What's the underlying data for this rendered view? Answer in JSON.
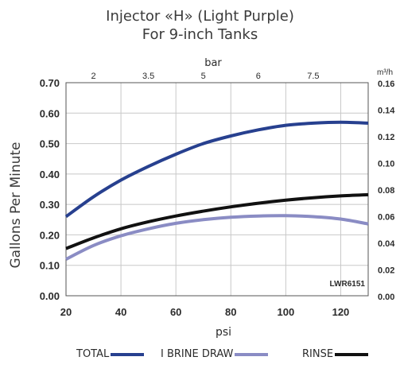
{
  "title_line1": "Injector «H» (Light Purple)",
  "title_line2": "For 9-inch Tanks",
  "left_axis_label": "Gallons Per Minute",
  "watermark": "LWR6151",
  "chart_data": {
    "type": "line",
    "xlabel": "psi",
    "ylabel": "Gallons Per Minute",
    "xlim": [
      20,
      130
    ],
    "ylim": [
      0,
      0.7
    ],
    "x_ticks": [
      20,
      40,
      60,
      80,
      100,
      120
    ],
    "x_tick_labels": [
      "20",
      "40",
      "60",
      "80",
      "100",
      "120"
    ],
    "y_ticks": [
      0,
      0.1,
      0.2,
      0.3,
      0.4,
      0.5,
      0.6,
      0.7
    ],
    "y_tick_labels": [
      "0.00",
      "0.10",
      "0.20",
      "0.30",
      "0.40",
      "0.50",
      "0.60",
      "0.70"
    ],
    "top_axis": {
      "label": "bar",
      "ticks": [
        "2",
        "3.5",
        "5",
        "6",
        "7.5"
      ],
      "tick_psi": [
        30,
        50,
        70,
        90,
        110
      ]
    },
    "right_axis": {
      "label": "m³/h",
      "ticks": [
        "0.00",
        "0.02",
        "0.04",
        "0.06",
        "0.08",
        "0.10",
        "0.12",
        "0.14",
        "0.16"
      ],
      "tick_gpm": [
        0,
        0.0875,
        0.175,
        0.2625,
        0.35,
        0.4375,
        0.525,
        0.6125,
        0.7
      ]
    },
    "grid": true,
    "legend_position": "bottom",
    "series": [
      {
        "name": "TOTAL",
        "color": "#27408f",
        "x": [
          20,
          30,
          40,
          50,
          60,
          70,
          80,
          90,
          100,
          110,
          120,
          130
        ],
        "y": [
          0.26,
          0.325,
          0.38,
          0.425,
          0.465,
          0.5,
          0.525,
          0.545,
          0.56,
          0.567,
          0.57,
          0.567
        ]
      },
      {
        "name": "I BRINE DRAW",
        "color": "#8a8cc4",
        "x": [
          20,
          30,
          40,
          50,
          60,
          70,
          80,
          90,
          100,
          110,
          120,
          130
        ],
        "y": [
          0.12,
          0.165,
          0.197,
          0.22,
          0.238,
          0.25,
          0.258,
          0.262,
          0.263,
          0.26,
          0.252,
          0.236
        ]
      },
      {
        "name": "RINSE",
        "color": "#111111",
        "x": [
          20,
          30,
          40,
          50,
          60,
          70,
          80,
          90,
          100,
          110,
          120,
          130
        ],
        "y": [
          0.155,
          0.19,
          0.22,
          0.243,
          0.262,
          0.278,
          0.292,
          0.304,
          0.314,
          0.322,
          0.328,
          0.332
        ]
      }
    ]
  }
}
